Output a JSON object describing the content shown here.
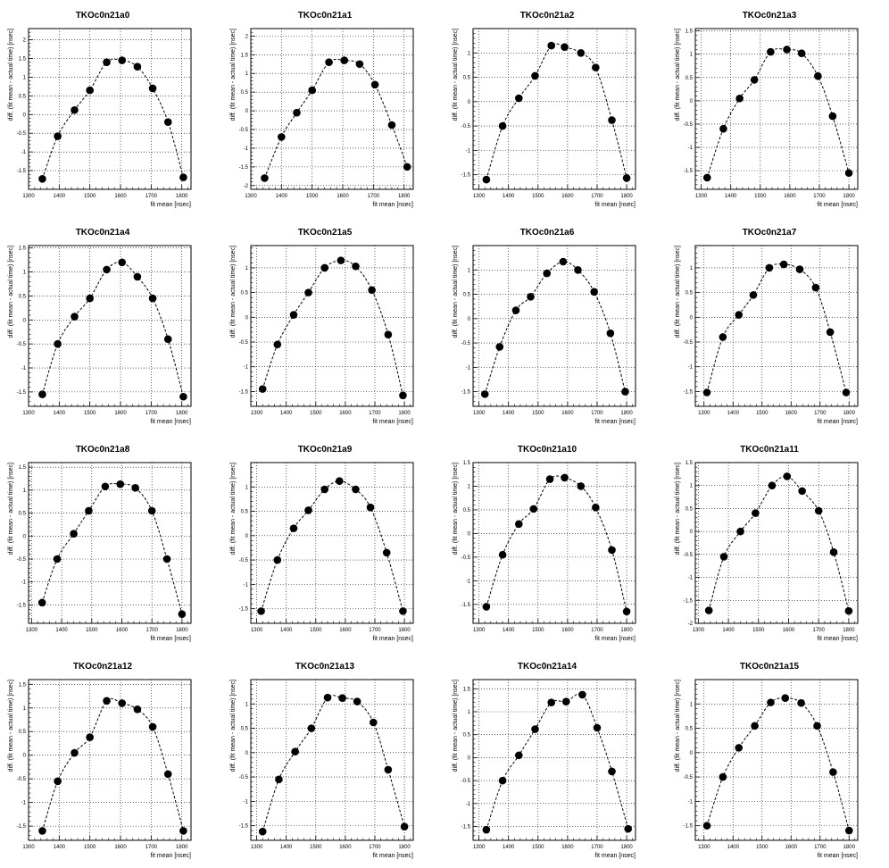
{
  "chart_data": [
    {
      "type": "scatter",
      "title": "TKOc0n21a0",
      "xlabel": "fit mean [nsec]",
      "ylabel": "diff. (fit mean - actual time) [nsec]",
      "xlim": [
        1300,
        1830
      ],
      "ylim": [
        -2.0,
        2.3
      ],
      "grid": true,
      "xticks": [
        1300,
        1400,
        1500,
        1600,
        1700,
        1800
      ],
      "yticks": [
        -1.5,
        -1,
        -0.5,
        0,
        0.5,
        1,
        1.5,
        2
      ],
      "xtick_labels": [
        "1300",
        "1400",
        "1500",
        "1600",
        "1700",
        "1800"
      ],
      "ytick_labels": [
        "-1.5",
        "-1",
        "-0.5",
        "0",
        "0.5",
        "1",
        "1.5",
        "2"
      ],
      "x": [
        1345,
        1395,
        1450,
        1500,
        1555,
        1605,
        1655,
        1705,
        1755,
        1805
      ],
      "y": [
        -1.72,
        -0.58,
        0.12,
        0.65,
        1.4,
        1.45,
        1.28,
        0.7,
        -0.2,
        -1.68
      ]
    },
    {
      "type": "scatter",
      "title": "TKOc0n21a1",
      "xlabel": "fit mean [nsec]",
      "ylabel": "diff. (fit mean - actual time) [nsec]",
      "xlim": [
        1300,
        1830
      ],
      "ylim": [
        -2.1,
        2.2
      ],
      "grid": true,
      "xticks": [
        1300,
        1400,
        1500,
        1600,
        1700,
        1800
      ],
      "yticks": [
        -2,
        -1.5,
        -1,
        -0.5,
        0,
        0.5,
        1,
        1.5,
        2
      ],
      "xtick_labels": [
        "1300",
        "1400",
        "1500",
        "1600",
        "1700",
        "1800"
      ],
      "ytick_labels": [
        "-2",
        "-1.5",
        "-1",
        "-0.5",
        "0",
        "0.5",
        "1",
        "1.5",
        "2"
      ],
      "x": [
        1345,
        1400,
        1450,
        1500,
        1555,
        1605,
        1655,
        1705,
        1760,
        1810
      ],
      "y": [
        -1.8,
        -0.7,
        -0.05,
        0.55,
        1.3,
        1.35,
        1.25,
        0.7,
        -0.38,
        -1.5
      ]
    },
    {
      "type": "scatter",
      "title": "TKOc0n21a2",
      "xlabel": "fit mean [nsec]",
      "ylabel": "diff. (fit mean - actual time) [nsec]",
      "xlim": [
        1280,
        1830
      ],
      "ylim": [
        -1.8,
        1.5
      ],
      "grid": true,
      "xticks": [
        1300,
        1400,
        1500,
        1600,
        1700,
        1800
      ],
      "yticks": [
        -1.5,
        -1,
        -0.5,
        0,
        0.5,
        1
      ],
      "xtick_labels": [
        "1300",
        "1400",
        "1500",
        "1600",
        "1700",
        "1800"
      ],
      "ytick_labels": [
        "-1.5",
        "-1",
        "-0.5",
        "0",
        "0.5",
        "1"
      ],
      "x": [
        1325,
        1380,
        1435,
        1490,
        1545,
        1590,
        1645,
        1695,
        1750,
        1800
      ],
      "y": [
        -1.6,
        -0.5,
        0.07,
        0.53,
        1.15,
        1.12,
        1.0,
        0.7,
        -0.38,
        -1.57
      ]
    },
    {
      "type": "scatter",
      "title": "TKOc0n21a3",
      "xlabel": "fit mean [nsec]",
      "ylabel": "diff. (fit mean - actual time) [nsec]",
      "xlim": [
        1280,
        1830
      ],
      "ylim": [
        -1.9,
        1.55
      ],
      "grid": true,
      "xticks": [
        1300,
        1400,
        1500,
        1600,
        1700,
        1800
      ],
      "yticks": [
        -1.5,
        -1,
        -0.5,
        0,
        0.5,
        1,
        1.5
      ],
      "xtick_labels": [
        "1300",
        "1400",
        "1500",
        "1600",
        "1700",
        "1800"
      ],
      "ytick_labels": [
        "-1.5",
        "-1",
        "-0.5",
        "0",
        "0.5",
        "1",
        "1.5"
      ],
      "x": [
        1320,
        1375,
        1430,
        1480,
        1535,
        1590,
        1640,
        1695,
        1745,
        1800
      ],
      "y": [
        -1.65,
        -0.6,
        0.05,
        0.45,
        1.05,
        1.1,
        1.02,
        0.53,
        -0.33,
        -1.55
      ]
    },
    {
      "type": "scatter",
      "title": "TKOc0n21a4",
      "xlabel": "fit mean [nsec]",
      "ylabel": "diff. (fit mean - actual time) [nsec]",
      "xlim": [
        1300,
        1830
      ],
      "ylim": [
        -1.8,
        1.55
      ],
      "grid": true,
      "xticks": [
        1300,
        1400,
        1500,
        1600,
        1700,
        1800
      ],
      "yticks": [
        -1.5,
        -1,
        -0.5,
        0,
        0.5,
        1,
        1.5
      ],
      "xtick_labels": [
        "1300",
        "1400",
        "1500",
        "1600",
        "1700",
        "1800"
      ],
      "ytick_labels": [
        "-1.5",
        "-1",
        "-0.5",
        "0",
        "0.5",
        "1",
        "1.5"
      ],
      "x": [
        1345,
        1395,
        1450,
        1500,
        1555,
        1605,
        1655,
        1705,
        1755,
        1805
      ],
      "y": [
        -1.55,
        -0.5,
        0.07,
        0.45,
        1.05,
        1.2,
        0.9,
        0.45,
        -0.4,
        -1.6
      ]
    },
    {
      "type": "scatter",
      "title": "TKOc0n21a5",
      "xlabel": "fit mean [nsec]",
      "ylabel": "diff. (fit mean - actual time) [nsec]",
      "xlim": [
        1280,
        1830
      ],
      "ylim": [
        -1.8,
        1.45
      ],
      "grid": true,
      "xticks": [
        1300,
        1400,
        1500,
        1600,
        1700,
        1800
      ],
      "yticks": [
        -1.5,
        -1,
        -0.5,
        0,
        0.5,
        1
      ],
      "xtick_labels": [
        "1300",
        "1400",
        "1500",
        "1600",
        "1700",
        "1800"
      ],
      "ytick_labels": [
        "-1.5",
        "-1",
        "-0.5",
        "0",
        "0.5",
        "1"
      ],
      "x": [
        1320,
        1370,
        1425,
        1475,
        1530,
        1585,
        1635,
        1690,
        1745,
        1795
      ],
      "y": [
        -1.45,
        -0.55,
        0.05,
        0.5,
        1.0,
        1.15,
        1.03,
        0.55,
        -0.35,
        -1.58
      ]
    },
    {
      "type": "scatter",
      "title": "TKOc0n21a6",
      "xlabel": "fit mean [nsec]",
      "ylabel": "diff. (fit mean - actual time) [nsec]",
      "xlim": [
        1280,
        1830
      ],
      "ylim": [
        -1.8,
        1.5
      ],
      "grid": true,
      "xticks": [
        1300,
        1400,
        1500,
        1600,
        1700,
        1800
      ],
      "yticks": [
        -1.5,
        -1,
        -0.5,
        0,
        0.5,
        1
      ],
      "xtick_labels": [
        "1300",
        "1400",
        "1500",
        "1600",
        "1700",
        "1800"
      ],
      "ytick_labels": [
        "-1.5",
        "-1",
        "-0.5",
        "0",
        "0.5",
        "1"
      ],
      "x": [
        1320,
        1370,
        1425,
        1475,
        1530,
        1585,
        1635,
        1690,
        1745,
        1795
      ],
      "y": [
        -1.55,
        -0.58,
        0.17,
        0.45,
        0.93,
        1.17,
        1.0,
        0.55,
        -0.3,
        -1.5
      ]
    },
    {
      "type": "scatter",
      "title": "TKOc0n21a7",
      "xlabel": "fit mean [nsec]",
      "ylabel": "diff. (fit mean - actual time) [nsec]",
      "xlim": [
        1270,
        1830
      ],
      "ylim": [
        -1.8,
        1.45
      ],
      "grid": true,
      "xticks": [
        1300,
        1400,
        1500,
        1600,
        1700,
        1800
      ],
      "yticks": [
        -1.5,
        -1,
        -0.5,
        0,
        0.5,
        1
      ],
      "xtick_labels": [
        "1300",
        "1400",
        "1500",
        "1600",
        "1700",
        "1800"
      ],
      "ytick_labels": [
        "-1.5",
        "-1",
        "-0.5",
        "0",
        "0.5",
        "1"
      ],
      "x": [
        1310,
        1365,
        1420,
        1470,
        1525,
        1575,
        1630,
        1685,
        1735,
        1790
      ],
      "y": [
        -1.52,
        -0.4,
        0.05,
        0.45,
        1.0,
        1.07,
        0.97,
        0.6,
        -0.3,
        -1.52
      ]
    },
    {
      "type": "scatter",
      "title": "TKOc0n21a8",
      "xlabel": "fit mean [nsec]",
      "ylabel": "diff. (fit mean - actual time) [nsec]",
      "xlim": [
        1290,
        1830
      ],
      "ylim": [
        -1.9,
        1.6
      ],
      "grid": true,
      "xticks": [
        1300,
        1400,
        1500,
        1600,
        1700,
        1800
      ],
      "yticks": [
        -1.5,
        -1,
        -0.5,
        0,
        0.5,
        1,
        1.5
      ],
      "xtick_labels": [
        "1300",
        "1400",
        "1500",
        "1600",
        "1700",
        "1800"
      ],
      "ytick_labels": [
        "-1.5",
        "-1",
        "-0.5",
        "0",
        "0.5",
        "1",
        "1.5"
      ],
      "x": [
        1335,
        1385,
        1440,
        1490,
        1545,
        1595,
        1645,
        1700,
        1750,
        1800
      ],
      "y": [
        -1.45,
        -0.5,
        0.05,
        0.55,
        1.08,
        1.13,
        1.05,
        0.55,
        -0.5,
        -1.7
      ]
    },
    {
      "type": "scatter",
      "title": "TKOc0n21a9",
      "xlabel": "fit mean [nsec]",
      "ylabel": "diff. (fit mean - actual time) [nsec]",
      "xlim": [
        1280,
        1830
      ],
      "ylim": [
        -1.8,
        1.5
      ],
      "grid": true,
      "xticks": [
        1300,
        1400,
        1500,
        1600,
        1700,
        1800
      ],
      "yticks": [
        -1.5,
        -1,
        -0.5,
        0,
        0.5,
        1
      ],
      "xtick_labels": [
        "1300",
        "1400",
        "1500",
        "1600",
        "1700",
        "1800"
      ],
      "ytick_labels": [
        "-1.5",
        "-1",
        "-0.5",
        "0",
        "0.5",
        "1"
      ],
      "x": [
        1315,
        1370,
        1425,
        1475,
        1530,
        1580,
        1635,
        1685,
        1740,
        1795
      ],
      "y": [
        -1.55,
        -0.5,
        0.15,
        0.52,
        0.95,
        1.12,
        0.95,
        0.58,
        -0.35,
        -1.55
      ]
    },
    {
      "type": "scatter",
      "title": "TKOc0n21a10",
      "xlabel": "fit mean [nsec]",
      "ylabel": "diff. (fit mean - actual time) [nsec]",
      "xlim": [
        1280,
        1830
      ],
      "ylim": [
        -1.9,
        1.5
      ],
      "grid": true,
      "xticks": [
        1300,
        1400,
        1500,
        1600,
        1700,
        1800
      ],
      "yticks": [
        -1.5,
        -1,
        -0.5,
        0,
        0.5,
        1,
        1.5
      ],
      "xtick_labels": [
        "1300",
        "1400",
        "1500",
        "1600",
        "1700",
        "1800"
      ],
      "ytick_labels": [
        "-1.5",
        "-1",
        "-0.5",
        "0",
        "0.5",
        "1",
        "1.5"
      ],
      "x": [
        1325,
        1380,
        1435,
        1485,
        1540,
        1590,
        1645,
        1695,
        1750,
        1800
      ],
      "y": [
        -1.55,
        -0.45,
        0.2,
        0.52,
        1.15,
        1.18,
        1.0,
        0.55,
        -0.35,
        -1.65
      ]
    },
    {
      "type": "scatter",
      "title": "TKOc0n21a11",
      "xlabel": "fit mean [nsec]",
      "ylabel": "diff. (fit mean - actual time) [nsec]",
      "xlim": [
        1290,
        1830
      ],
      "ylim": [
        -2.0,
        1.5
      ],
      "grid": true,
      "xticks": [
        1300,
        1400,
        1500,
        1600,
        1700,
        1800
      ],
      "yticks": [
        -2,
        -1.5,
        -1,
        -0.5,
        0,
        0.5,
        1,
        1.5
      ],
      "xtick_labels": [
        "1300",
        "1400",
        "1500",
        "1600",
        "1700",
        "1800"
      ],
      "ytick_labels": [
        "-2",
        "-1.5",
        "-1",
        "-0.5",
        "0",
        "0.5",
        "1",
        "1.5"
      ],
      "x": [
        1335,
        1385,
        1440,
        1490,
        1545,
        1595,
        1645,
        1700,
        1750,
        1800
      ],
      "y": [
        -1.72,
        -0.55,
        0.0,
        0.4,
        1.0,
        1.2,
        0.88,
        0.45,
        -0.45,
        -1.73
      ]
    },
    {
      "type": "scatter",
      "title": "TKOc0n21a12",
      "xlabel": "fit mean [nsec]",
      "ylabel": "diff. (fit mean - actual time) [nsec]",
      "xlim": [
        1300,
        1830
      ],
      "ylim": [
        -1.8,
        1.6
      ],
      "grid": true,
      "xticks": [
        1300,
        1400,
        1500,
        1600,
        1700,
        1800
      ],
      "yticks": [
        -1.5,
        -1,
        -0.5,
        0,
        0.5,
        1,
        1.5
      ],
      "xtick_labels": [
        "1300",
        "1400",
        "1500",
        "1600",
        "1700",
        "1800"
      ],
      "ytick_labels": [
        "-1.5",
        "-1",
        "-0.5",
        "0",
        "0.5",
        "1",
        "1.5"
      ],
      "x": [
        1345,
        1395,
        1450,
        1500,
        1555,
        1605,
        1655,
        1705,
        1755,
        1805
      ],
      "y": [
        -1.6,
        -0.55,
        0.05,
        0.38,
        1.15,
        1.1,
        0.97,
        0.6,
        -0.4,
        -1.6
      ]
    },
    {
      "type": "scatter",
      "title": "TKOc0n21a13",
      "xlabel": "fit mean [nsec]",
      "ylabel": "diff. (fit mean - actual time) [nsec]",
      "xlim": [
        1280,
        1830
      ],
      "ylim": [
        -1.8,
        1.5
      ],
      "grid": true,
      "xticks": [
        1300,
        1400,
        1500,
        1600,
        1700,
        1800
      ],
      "yticks": [
        -1.5,
        -1,
        -0.5,
        0,
        0.5,
        1
      ],
      "xtick_labels": [
        "1300",
        "1400",
        "1500",
        "1600",
        "1700",
        "1800"
      ],
      "ytick_labels": [
        "-1.5",
        "-1",
        "-0.5",
        "0",
        "0.5",
        "1"
      ],
      "x": [
        1320,
        1375,
        1430,
        1485,
        1540,
        1590,
        1640,
        1695,
        1745,
        1800
      ],
      "y": [
        -1.62,
        -0.55,
        0.02,
        0.5,
        1.13,
        1.12,
        1.05,
        0.62,
        -0.35,
        -1.52
      ]
    },
    {
      "type": "scatter",
      "title": "TKOc0n21a14",
      "xlabel": "fit mean [nsec]",
      "ylabel": "diff. (fit mean - actual time) [nsec]",
      "xlim": [
        1280,
        1830
      ],
      "ylim": [
        -1.8,
        1.7
      ],
      "grid": true,
      "xticks": [
        1300,
        1400,
        1500,
        1600,
        1700,
        1800
      ],
      "yticks": [
        -1.5,
        -1,
        -0.5,
        0,
        0.5,
        1,
        1.5
      ],
      "xtick_labels": [
        "1300",
        "1400",
        "1500",
        "1600",
        "1700",
        "1800"
      ],
      "ytick_labels": [
        "-1.5",
        "-1",
        "-0.5",
        "0",
        "0.5",
        "1",
        "1.5"
      ],
      "x": [
        1325,
        1380,
        1435,
        1490,
        1545,
        1595,
        1650,
        1700,
        1750,
        1805
      ],
      "y": [
        -1.57,
        -0.5,
        0.05,
        0.62,
        1.2,
        1.22,
        1.37,
        0.65,
        -0.3,
        -1.55
      ]
    },
    {
      "type": "scatter",
      "title": "TKOc0n21a15",
      "xlabel": "fit mean [nsec]",
      "ylabel": "diff. (fit mean - actual time) [nsec]",
      "xlim": [
        1270,
        1830
      ],
      "ylim": [
        -1.8,
        1.5
      ],
      "grid": true,
      "xticks": [
        1300,
        1400,
        1500,
        1600,
        1700,
        1800
      ],
      "yticks": [
        -1.5,
        -1,
        -0.5,
        0,
        0.5,
        1
      ],
      "xtick_labels": [
        "1300",
        "1400",
        "1500",
        "1600",
        "1700",
        "1800"
      ],
      "ytick_labels": [
        "-1.5",
        "-1",
        "-0.5",
        "0",
        "0.5",
        "1"
      ],
      "x": [
        1310,
        1365,
        1420,
        1475,
        1530,
        1580,
        1635,
        1690,
        1745,
        1800
      ],
      "y": [
        -1.5,
        -0.5,
        0.1,
        0.55,
        1.03,
        1.12,
        1.02,
        0.55,
        -0.4,
        -1.6
      ]
    }
  ]
}
